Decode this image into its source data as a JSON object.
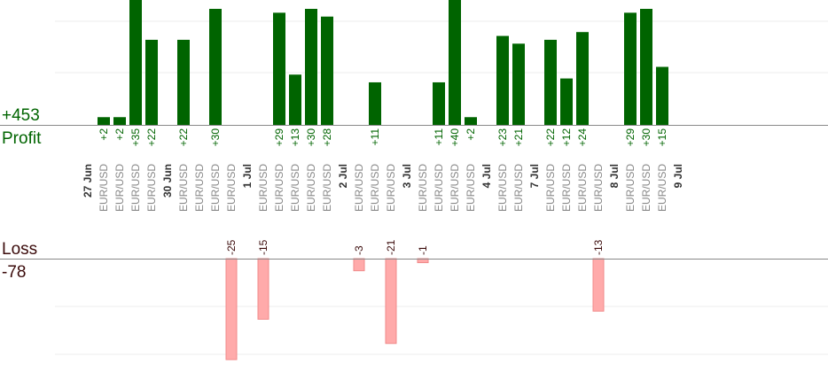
{
  "summary": {
    "profit_total": "+453",
    "profit_label": "Profit",
    "loss_label": "Loss",
    "loss_total": "-78"
  },
  "colors": {
    "profit_bar": "#006400",
    "profit_bar_light": "#1f7a1f",
    "profit_text": "#006400",
    "loss_bar": "#ffaaaa",
    "loss_bar_edge": "#f08a8a",
    "loss_text": "#3a0a0a",
    "axis": "#888888",
    "grid": "#eeeeee",
    "date_text": "#333333",
    "pair_text": "#888888"
  },
  "chart_data": {
    "type": "bar",
    "grid": true,
    "profit_ylim": [
      0,
      30
    ],
    "loss_ylim": [
      0,
      25
    ],
    "columns": [
      {
        "kind": "date",
        "label": "27 Jun"
      },
      {
        "kind": "trade",
        "pair": "EUR/USD",
        "profit": "+2",
        "value": 2
      },
      {
        "kind": "trade",
        "pair": "EUR/USD",
        "profit": "+2",
        "value": 2
      },
      {
        "kind": "trade",
        "pair": "EUR/USD",
        "profit": "+35",
        "value": 35
      },
      {
        "kind": "trade",
        "pair": "EUR/USD",
        "profit": "+22",
        "value": 22
      },
      {
        "kind": "gap"
      },
      {
        "kind": "date",
        "label": "30 Jun"
      },
      {
        "kind": "trade",
        "pair": "EUR/USD",
        "profit": "+22",
        "value": 22
      },
      {
        "kind": "trade",
        "pair": "EUR/USD",
        "loss": "",
        "value": 0
      },
      {
        "kind": "trade",
        "pair": "EUR/USD",
        "profit": "+30",
        "value": 30
      },
      {
        "kind": "trade",
        "pair": "EUR/USD",
        "loss": "-25",
        "value": -25
      },
      {
        "kind": "gap"
      },
      {
        "kind": "date",
        "label": "1 Jul"
      },
      {
        "kind": "trade",
        "pair": "EUR/USD",
        "loss": "-15",
        "value": -15
      },
      {
        "kind": "trade",
        "pair": "EUR/USD",
        "profit": "+29",
        "value": 29
      },
      {
        "kind": "trade",
        "pair": "EUR/USD",
        "profit": "+13",
        "value": 13
      },
      {
        "kind": "trade",
        "pair": "EUR/USD",
        "profit": "+30",
        "value": 30
      },
      {
        "kind": "trade",
        "pair": "EUR/USD",
        "profit": "+28",
        "value": 28
      },
      {
        "kind": "gap"
      },
      {
        "kind": "date",
        "label": "2 Jul"
      },
      {
        "kind": "trade",
        "pair": "EUR/USD",
        "loss": "-3",
        "value": -3
      },
      {
        "kind": "trade",
        "pair": "EUR/USD",
        "profit": "+11",
        "value": 11
      },
      {
        "kind": "trade",
        "pair": "EUR/USD",
        "loss": "-21",
        "value": -21
      },
      {
        "kind": "gap"
      },
      {
        "kind": "date",
        "label": "3 Jul"
      },
      {
        "kind": "trade",
        "pair": "EUR/USD",
        "loss": "-1",
        "value": -1
      },
      {
        "kind": "trade",
        "pair": "EUR/USD",
        "profit": "+11",
        "value": 11
      },
      {
        "kind": "trade",
        "pair": "EUR/USD",
        "profit": "+40",
        "value": 40
      },
      {
        "kind": "trade",
        "pair": "EUR/USD",
        "profit": "+2",
        "value": 2
      },
      {
        "kind": "gap"
      },
      {
        "kind": "date",
        "label": "4 Jul"
      },
      {
        "kind": "trade",
        "pair": "EUR/USD",
        "profit": "+23",
        "value": 23
      },
      {
        "kind": "trade",
        "pair": "EUR/USD",
        "profit": "+21",
        "value": 21
      },
      {
        "kind": "gap"
      },
      {
        "kind": "date",
        "label": "7 Jul"
      },
      {
        "kind": "trade",
        "pair": "EUR/USD",
        "profit": "+22",
        "value": 22
      },
      {
        "kind": "trade",
        "pair": "EUR/USD",
        "profit": "+12",
        "value": 12
      },
      {
        "kind": "trade",
        "pair": "EUR/USD",
        "profit": "+24",
        "value": 24
      },
      {
        "kind": "trade",
        "pair": "EUR/USD",
        "loss": "-13",
        "value": -13
      },
      {
        "kind": "gap"
      },
      {
        "kind": "date",
        "label": "8 Jul"
      },
      {
        "kind": "trade",
        "pair": "EUR/USD",
        "profit": "+29",
        "value": 29
      },
      {
        "kind": "trade",
        "pair": "EUR/USD",
        "profit": "+30",
        "value": 30
      },
      {
        "kind": "trade",
        "pair": "EUR/USD",
        "profit": "+15",
        "value": 15
      },
      {
        "kind": "gap"
      },
      {
        "kind": "date",
        "label": "9 Jul"
      }
    ]
  }
}
